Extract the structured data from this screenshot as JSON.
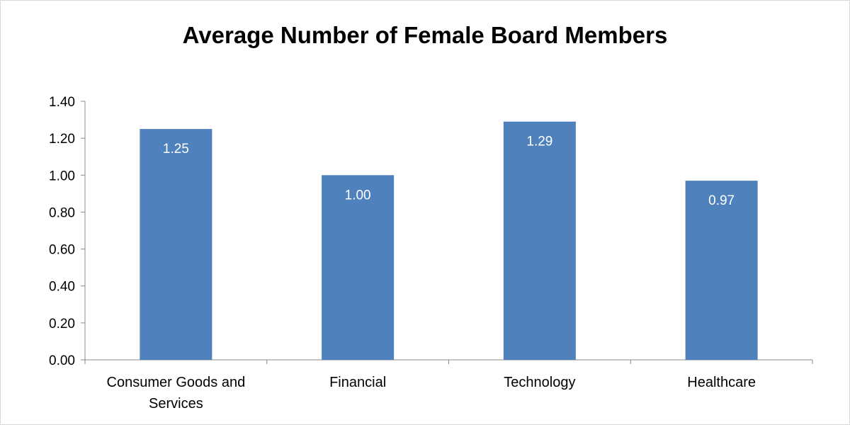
{
  "chart_data": {
    "type": "bar",
    "title": "Average Number of Female Board Members",
    "categories": [
      "Consumer Goods and Services",
      "Financial",
      "Technology",
      "Healthcare"
    ],
    "category_label_lines": [
      [
        "Consumer Goods and",
        "Services"
      ],
      [
        "Financial"
      ],
      [
        "Technology"
      ],
      [
        "Healthcare"
      ]
    ],
    "values": [
      1.25,
      1.0,
      1.29,
      0.97
    ],
    "value_labels": [
      "1.25",
      "1.00",
      "1.29",
      "0.97"
    ],
    "y_ticks": [
      "0.00",
      "0.20",
      "0.40",
      "0.60",
      "0.80",
      "1.00",
      "1.20",
      "1.40"
    ],
    "ylim": [
      0,
      1.4
    ],
    "xlabel": "",
    "ylabel": "",
    "grid": false,
    "legend": "none",
    "bar_color": "#4f81bd",
    "data_label_color": "#ffffff"
  }
}
